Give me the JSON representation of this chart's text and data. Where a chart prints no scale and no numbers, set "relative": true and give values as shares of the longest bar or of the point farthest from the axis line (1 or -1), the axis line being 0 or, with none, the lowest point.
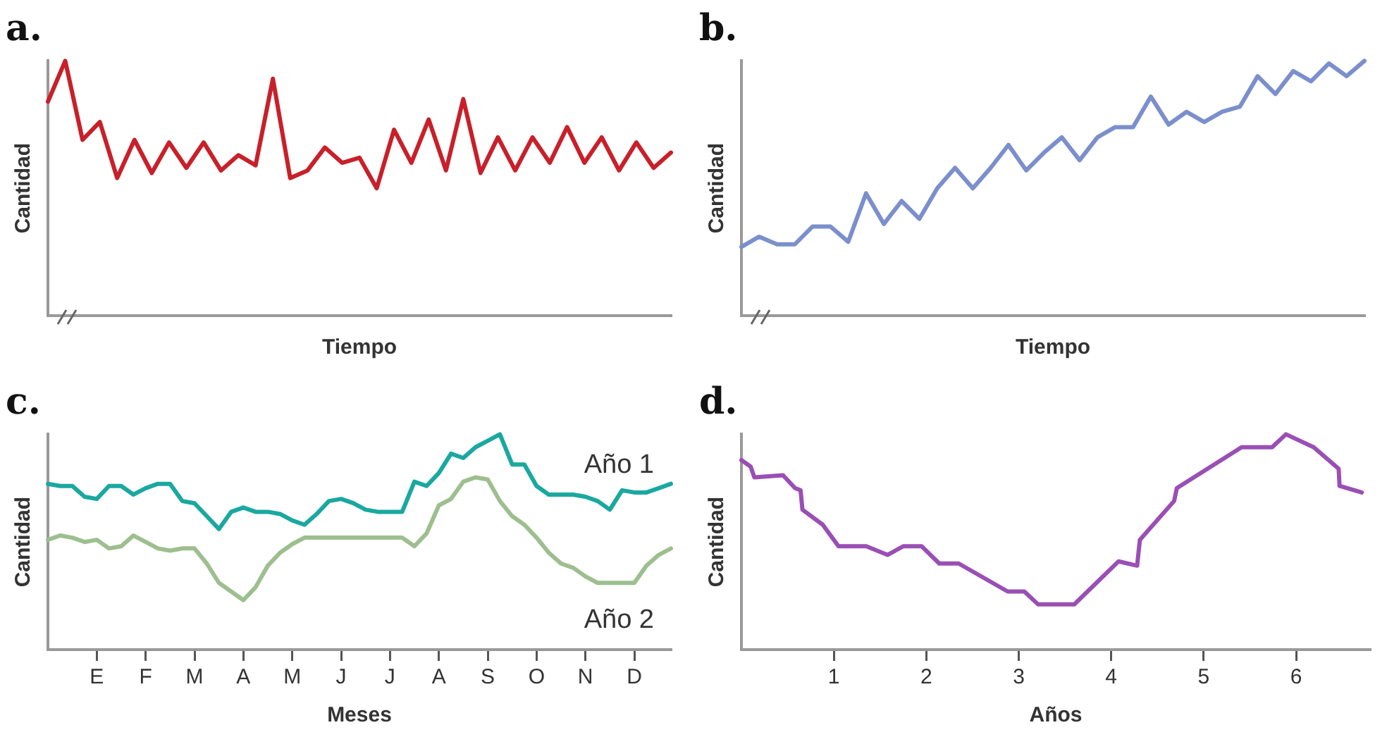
{
  "chart_data": [
    {
      "type": "line",
      "title": "a.",
      "xlabel": "Tiempo",
      "ylabel": "Cantidad",
      "relative": true,
      "legend": false,
      "grid": false,
      "marker": "none",
      "line_style": "solid",
      "tick_labels": false,
      "categories": [
        null,
        null,
        null,
        null,
        null,
        null,
        null,
        null,
        null,
        null,
        null,
        null,
        null,
        null,
        null,
        null,
        null,
        null,
        null,
        null,
        null,
        null,
        null,
        null,
        null,
        null,
        null,
        null,
        null,
        null,
        null,
        null,
        null,
        null,
        null,
        null,
        null
      ],
      "series": [
        {
          "color": "#c8202a",
          "values": [
            0.84,
            1.0,
            0.69,
            0.76,
            0.54,
            0.69,
            0.56,
            0.68,
            0.58,
            0.68,
            0.57,
            0.63,
            0.59,
            0.93,
            0.54,
            0.57,
            0.66,
            0.6,
            0.62,
            0.5,
            0.73,
            0.6,
            0.77,
            0.57,
            0.85,
            0.56,
            0.7,
            0.57,
            0.7,
            0.6,
            0.74,
            0.6,
            0.7,
            0.57,
            0.68,
            0.58,
            0.64
          ]
        }
      ]
    },
    {
      "type": "line",
      "title": "b.",
      "xlabel": "Tiempo",
      "ylabel": "Cantidad",
      "relative": true,
      "legend": false,
      "grid": false,
      "marker": "none",
      "line_style": "solid",
      "tick_labels": false,
      "categories": [
        null,
        null,
        null,
        null,
        null,
        null,
        null,
        null,
        null,
        null,
        null,
        null,
        null,
        null,
        null,
        null,
        null,
        null,
        null,
        null,
        null,
        null,
        null,
        null,
        null,
        null,
        null,
        null,
        null,
        null,
        null,
        null,
        null,
        null,
        null,
        null
      ],
      "series": [
        {
          "color": "#7b8fcc",
          "values": [
            0.27,
            0.31,
            0.28,
            0.28,
            0.35,
            0.35,
            0.29,
            0.48,
            0.36,
            0.45,
            0.38,
            0.5,
            0.58,
            0.5,
            0.58,
            0.67,
            0.57,
            0.64,
            0.7,
            0.61,
            0.7,
            0.74,
            0.74,
            0.86,
            0.75,
            0.8,
            0.76,
            0.8,
            0.82,
            0.94,
            0.87,
            0.96,
            0.92,
            0.99,
            0.94,
            1.0
          ]
        }
      ]
    },
    {
      "type": "line",
      "title": "c.",
      "xlabel": "Meses",
      "ylabel": "Cantidad",
      "relative": true,
      "legend": false,
      "grid": false,
      "marker": "none",
      "line_style": "solid",
      "tick_labels": "x",
      "categories": [
        null,
        null,
        null,
        null,
        "E",
        null,
        null,
        null,
        "F",
        null,
        null,
        null,
        "M",
        null,
        null,
        null,
        "A",
        null,
        null,
        null,
        "M",
        null,
        null,
        null,
        "J",
        null,
        null,
        null,
        "J",
        null,
        null,
        null,
        "A",
        null,
        null,
        null,
        "S",
        null,
        null,
        null,
        "O",
        null,
        null,
        null,
        "N",
        null,
        null,
        null,
        "D",
        null,
        null,
        null
      ],
      "series": [
        {
          "name": "Año 1",
          "color": "#1aa8a0",
          "values": [
            0.77,
            0.76,
            0.76,
            0.71,
            0.7,
            0.76,
            0.76,
            0.72,
            0.75,
            0.77,
            0.77,
            0.69,
            0.68,
            0.62,
            0.56,
            0.64,
            0.66,
            0.64,
            0.64,
            0.63,
            0.6,
            0.58,
            0.63,
            0.69,
            0.7,
            0.68,
            0.65,
            0.64,
            0.64,
            0.64,
            0.78,
            0.76,
            0.82,
            0.91,
            0.89,
            0.94,
            0.97,
            1.0,
            0.86,
            0.86,
            0.76,
            0.72,
            0.72,
            0.72,
            0.71,
            0.69,
            0.65,
            0.74,
            0.73,
            0.73,
            0.75,
            0.77
          ]
        },
        {
          "name": "Año 2",
          "color": "#9dbf8f",
          "values": [
            0.51,
            0.53,
            0.52,
            0.5,
            0.51,
            0.47,
            0.48,
            0.53,
            0.5,
            0.47,
            0.46,
            0.47,
            0.47,
            0.4,
            0.31,
            0.27,
            0.23,
            0.29,
            0.39,
            0.45,
            0.49,
            0.52,
            0.52,
            0.52,
            0.52,
            0.52,
            0.52,
            0.52,
            0.52,
            0.52,
            0.48,
            0.54,
            0.67,
            0.7,
            0.78,
            0.8,
            0.79,
            0.69,
            0.62,
            0.58,
            0.52,
            0.45,
            0.4,
            0.38,
            0.34,
            0.31,
            0.31,
            0.31,
            0.31,
            0.39,
            0.44,
            0.47
          ]
        }
      ]
    },
    {
      "type": "line",
      "title": "d.",
      "xlabel": "Años",
      "ylabel": "Cantidad",
      "relative": true,
      "legend": false,
      "grid": false,
      "marker": "none",
      "line_style": "solid",
      "tick_labels": "x",
      "xlim": [
        0,
        6.8
      ],
      "xticks": [
        1,
        2,
        3,
        4,
        5,
        6
      ],
      "x": [
        0,
        0.1,
        0.14,
        0.45,
        0.58,
        0.64,
        0.66,
        0.88,
        1.05,
        1.35,
        1.58,
        1.75,
        1.95,
        2.14,
        2.35,
        2.88,
        3.06,
        3.21,
        3.6,
        4.08,
        4.28,
        4.31,
        4.68,
        4.71,
        5.41,
        5.74,
        5.89,
        6.19,
        6.46,
        6.47,
        6.71
      ],
      "series": [
        {
          "color": "#9a4fb5",
          "values": [
            0.88,
            0.85,
            0.8,
            0.81,
            0.75,
            0.74,
            0.65,
            0.58,
            0.48,
            0.48,
            0.44,
            0.48,
            0.48,
            0.4,
            0.4,
            0.27,
            0.27,
            0.21,
            0.21,
            0.41,
            0.39,
            0.51,
            0.69,
            0.75,
            0.94,
            0.94,
            1.0,
            0.94,
            0.84,
            0.76,
            0.73
          ]
        }
      ]
    }
  ]
}
